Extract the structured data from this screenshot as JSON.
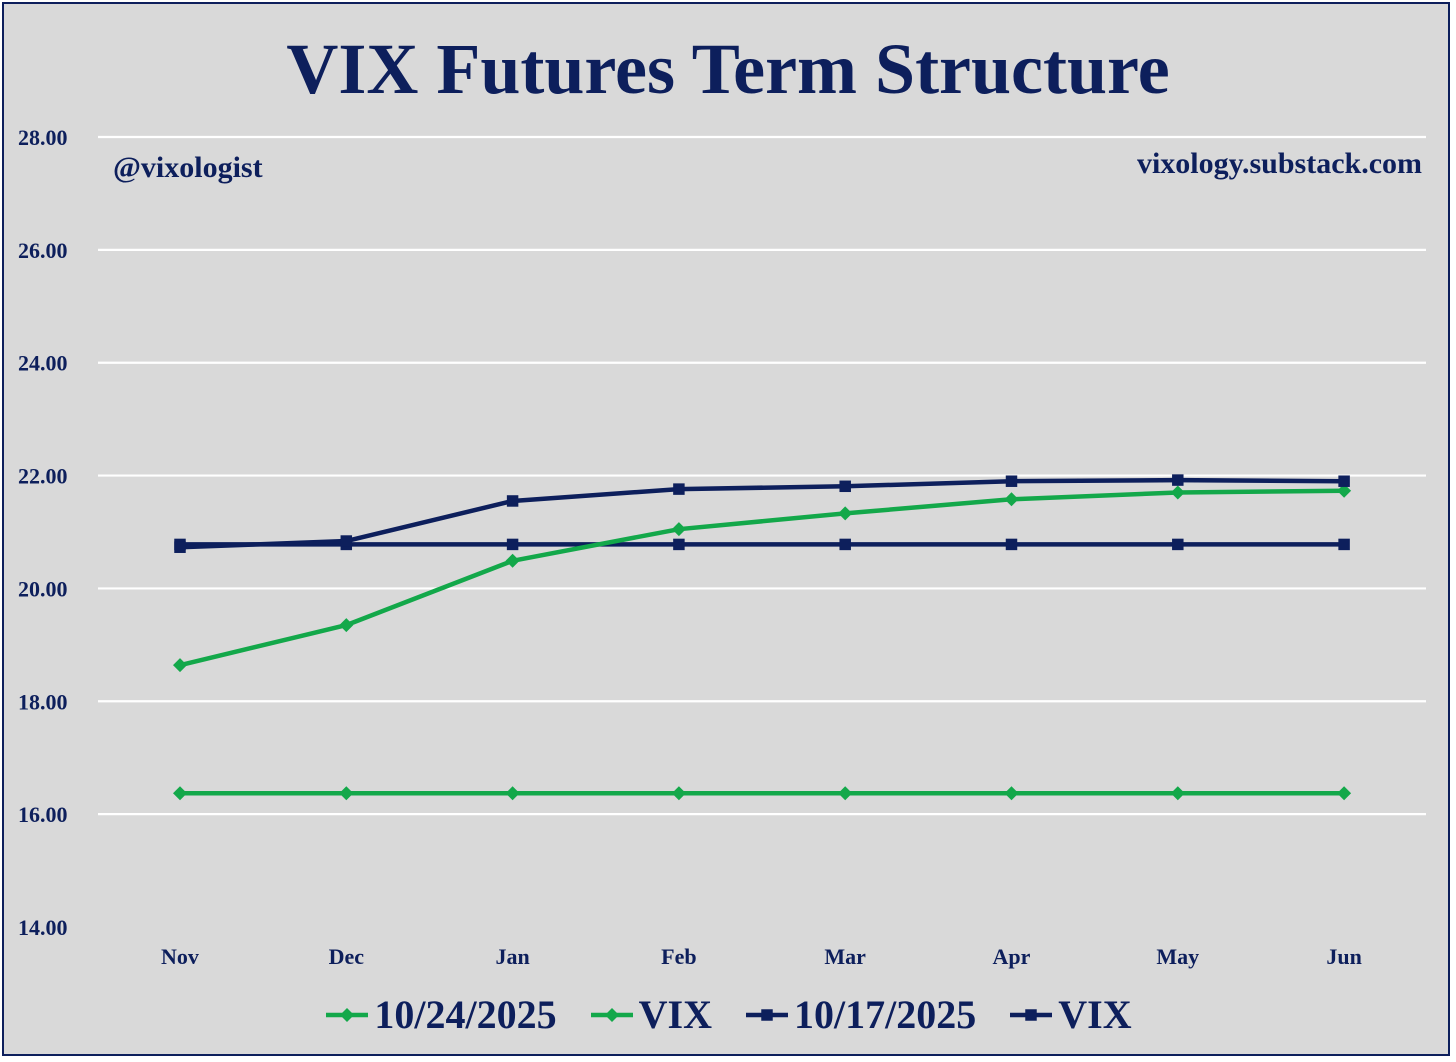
{
  "chart_data": {
    "type": "line",
    "title": "VIX Futures Term Structure",
    "annotations": {
      "left": "@vixologist",
      "right": "vixology.substack.com"
    },
    "categories": [
      "Nov",
      "Dec",
      "Jan",
      "Feb",
      "Mar",
      "Apr",
      "May",
      "Jun"
    ],
    "ylim": [
      14,
      28
    ],
    "yticks": [
      "14.00",
      "16.00",
      "18.00",
      "20.00",
      "22.00",
      "24.00",
      "26.00",
      "28.00"
    ],
    "ytick_values": [
      14,
      16,
      18,
      20,
      22,
      24,
      26,
      28
    ],
    "grid": true,
    "legend_position": "bottom",
    "series": [
      {
        "name": "10/24/2025",
        "color": "#13a84a",
        "marker": "diamond",
        "values": [
          18.64,
          19.35,
          20.49,
          21.05,
          21.33,
          21.58,
          21.7,
          21.73
        ]
      },
      {
        "name": "VIX",
        "color": "#13a84a",
        "marker": "diamond",
        "values": [
          16.37,
          16.37,
          16.37,
          16.37,
          16.37,
          16.37,
          16.37,
          16.37
        ]
      },
      {
        "name": "10/17/2025",
        "color": "#0d1f5c",
        "marker": "square",
        "values": [
          20.73,
          20.84,
          21.55,
          21.76,
          21.81,
          21.9,
          21.92,
          21.9
        ]
      },
      {
        "name": "VIX",
        "color": "#0d1f5c",
        "marker": "square",
        "values": [
          20.78,
          20.78,
          20.78,
          20.78,
          20.78,
          20.78,
          20.78,
          20.78
        ]
      }
    ]
  }
}
